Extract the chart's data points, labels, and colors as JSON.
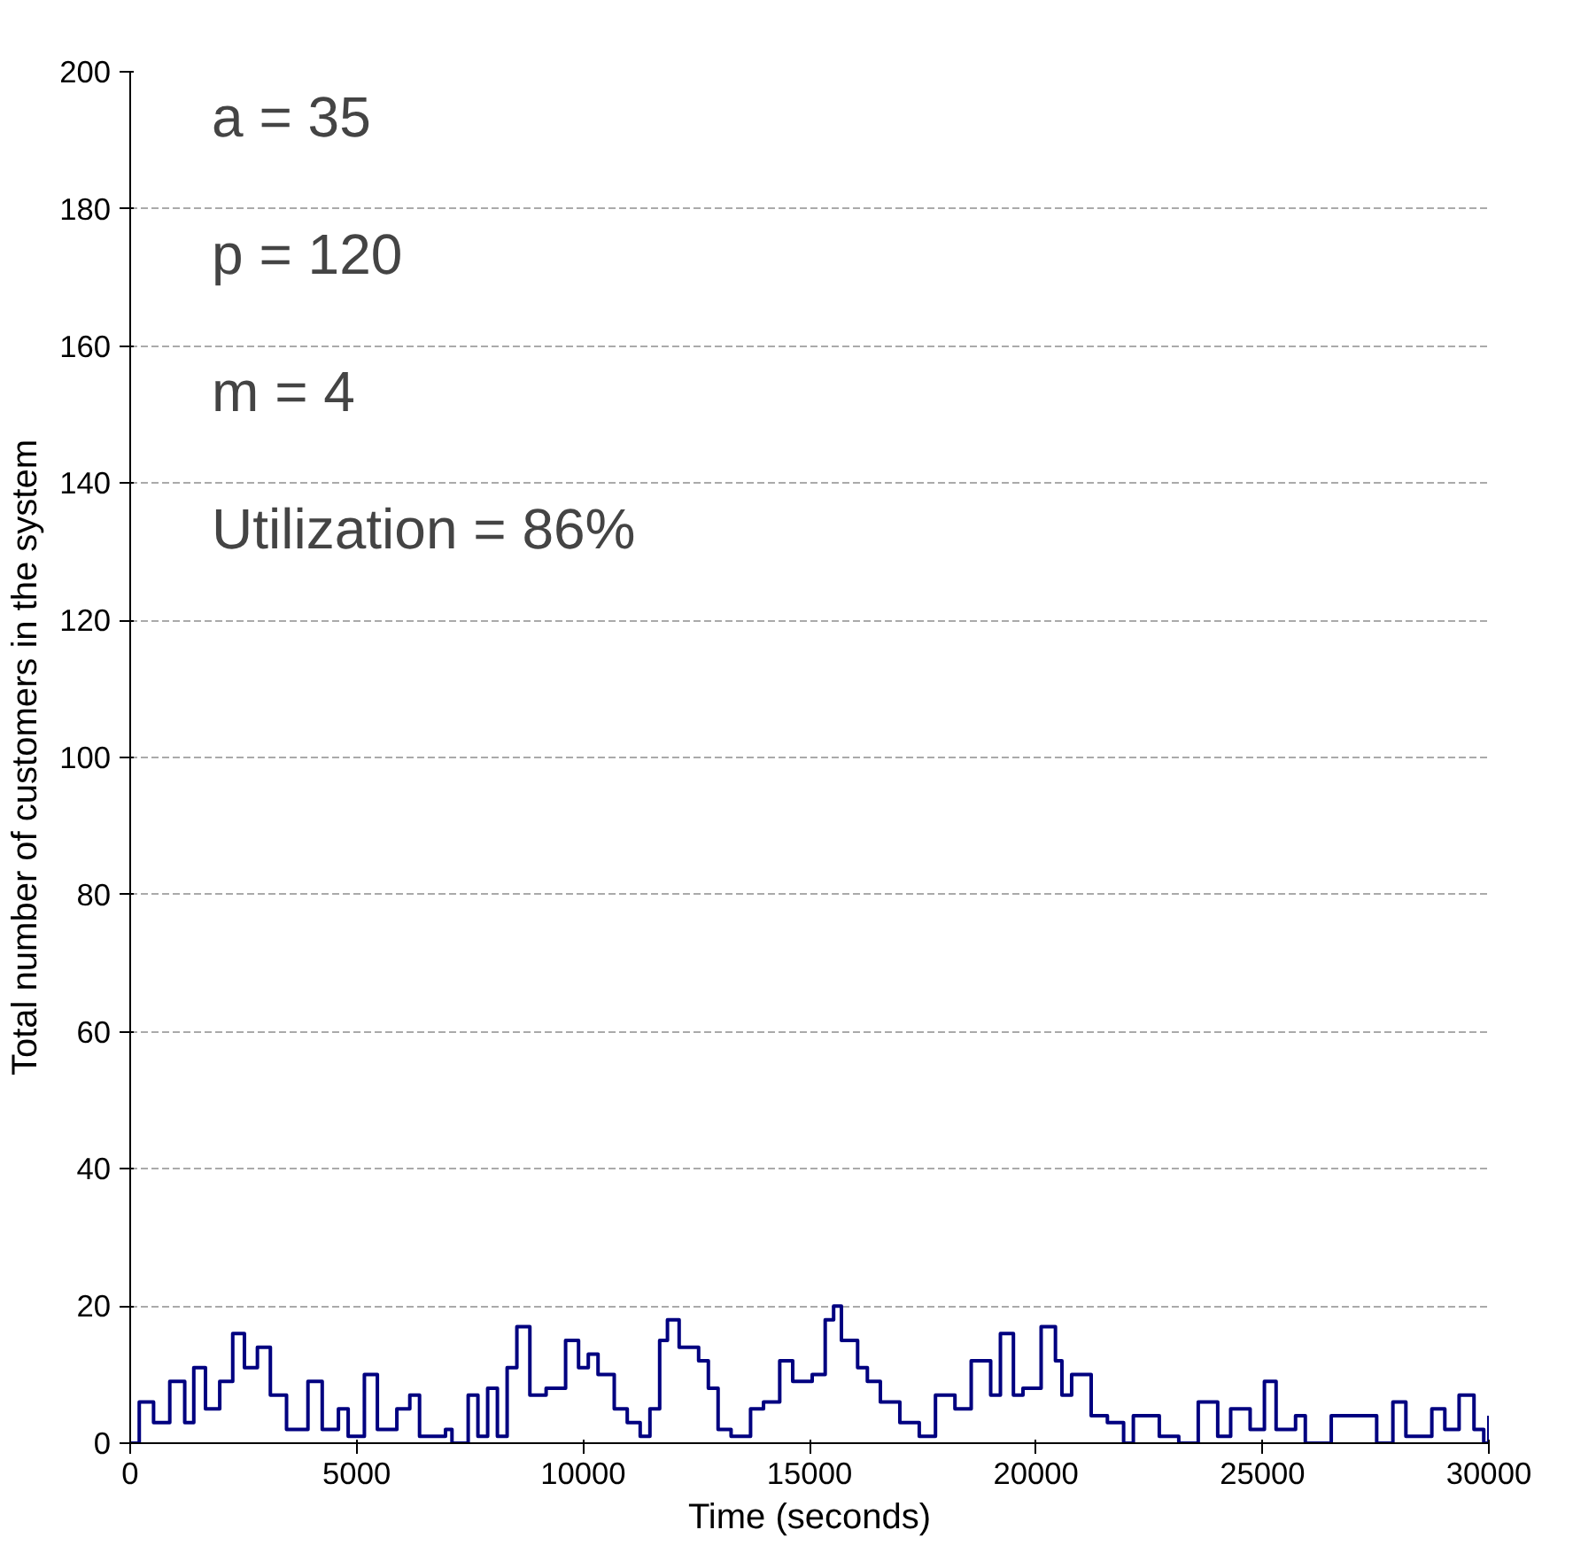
{
  "chart_data": {
    "type": "step",
    "xlabel": "Time (seconds)",
    "ylabel": "Total number of customers in the system",
    "annotations": [
      "a = 35",
      "p = 120",
      "m = 4",
      "Utilization = 86%"
    ],
    "xlim": [
      0,
      30000
    ],
    "xticks": [
      0,
      5000,
      10000,
      15000,
      20000,
      25000,
      30000
    ],
    "ylim": [
      0,
      200
    ],
    "yticks": [
      0,
      20,
      40,
      60,
      80,
      100,
      120,
      140,
      160,
      180,
      200
    ],
    "grid": "y",
    "series": [
      {
        "color": "#000080",
        "x": [
          0,
          200,
          516,
          874,
          1204,
          1404,
          1662,
          1977,
          2264,
          2522,
          2809,
          3095,
          3452,
          3925,
          4240,
          4598,
          4813,
          5171,
          5458,
          5888,
          6174,
          6389,
          6962,
          7105,
          7463,
          7678,
          7893,
          8108,
          8323,
          8538,
          8825,
          9184,
          9614,
          9900,
          10115,
          10330,
          10688,
          10975,
          11261,
          11476,
          11691,
          11863,
          12121,
          12551,
          12766,
          12981,
          13268,
          13698,
          13984,
          14342,
          14629,
          15059,
          15346,
          15532,
          15704,
          16062,
          16277,
          16564,
          16994,
          17423,
          17781,
          18211,
          18570,
          19000,
          19215,
          19502,
          19713,
          20114,
          20430,
          20573,
          20788,
          21219,
          21577,
          21935,
          22150,
          22723,
          23153,
          23583,
          24013,
          24299,
          24729,
          25044,
          25302,
          25732,
          25947,
          26520,
          27165,
          27523,
          27881,
          28168,
          28741,
          29028,
          29343,
          29672,
          29887,
          30000
        ],
        "values": [
          0,
          6,
          3,
          9,
          3,
          11,
          5,
          9,
          16,
          11,
          14,
          7,
          2,
          9,
          2,
          5,
          1,
          10,
          2,
          5,
          7,
          1,
          2,
          0,
          7,
          1,
          8,
          1,
          11,
          17,
          7,
          8,
          15,
          11,
          13,
          10,
          5,
          3,
          1,
          5,
          15,
          18,
          14,
          12,
          8,
          2,
          1,
          5,
          6,
          12,
          9,
          10,
          18,
          20,
          15,
          11,
          9,
          6,
          3,
          1,
          7,
          5,
          12,
          7,
          16,
          7,
          8,
          17,
          12,
          7,
          10,
          4,
          3,
          0,
          4,
          1,
          0,
          6,
          1,
          5,
          2,
          9,
          2,
          4,
          0,
          4,
          4,
          0,
          6,
          1,
          5,
          2,
          7,
          2,
          0,
          4
        ]
      }
    ]
  }
}
